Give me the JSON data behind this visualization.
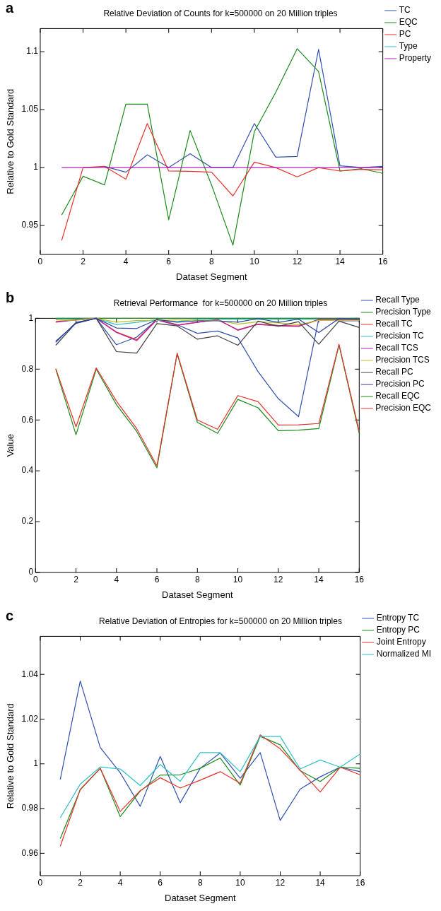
{
  "chart_data": [
    {
      "type": "line",
      "title": "Relative Deviation of Counts for k=500000 on 20 Million triples",
      "annotations": [
        "a"
      ],
      "xlabel": "Dataset Segment",
      "ylabel": "Relative to Gold Standard",
      "x": [
        1,
        2,
        3,
        4,
        5,
        6,
        7,
        8,
        9,
        10,
        11,
        12,
        13,
        14,
        15,
        16
      ],
      "xlim": [
        0,
        16
      ],
      "xticks": [
        0,
        2,
        4,
        6,
        8,
        10,
        12,
        14,
        16
      ],
      "ylim": [
        0.925,
        1.12
      ],
      "yticks": [
        0.95,
        1,
        1.05,
        1.1
      ],
      "grid": false,
      "legend": "right",
      "marker": "none",
      "line_style": "solid",
      "series": [
        {
          "name": "TC",
          "color": "#3050b0",
          "values": [
            null,
            null,
            1.001,
            0.996,
            1.011,
            1.0,
            1.012,
            1.0,
            1.0,
            1.038,
            1.009,
            1.0096,
            1.102,
            1.0015,
            1.0,
            1.001
          ]
        },
        {
          "name": "EQC",
          "color": "#1a8a1a",
          "values": [
            0.959,
            0.9925,
            0.985,
            1.0547,
            1.0547,
            0.955,
            1.032,
            0.985,
            0.933,
            1.031,
            1.065,
            1.1026,
            1.083,
            0.997,
            0.999,
            0.995
          ]
        },
        {
          "name": "PC",
          "color": "#e8302a",
          "values": [
            0.937,
            1.0,
            1.001,
            0.99,
            1.038,
            0.997,
            0.9968,
            0.996,
            0.9755,
            1.0047,
            1.0,
            0.992,
            1.0,
            0.997,
            0.9985,
            0.998
          ]
        },
        {
          "name": "Type",
          "color": "#30c0c8",
          "values": [
            null,
            null,
            null,
            null,
            null,
            null,
            null,
            null,
            null,
            null,
            null,
            null,
            null,
            null,
            null,
            null
          ]
        },
        {
          "name": "Property",
          "color": "#b020b0",
          "values": [
            1,
            1,
            1,
            1,
            1,
            1,
            1,
            1,
            1,
            1,
            1,
            1,
            1,
            1,
            1,
            1
          ]
        }
      ]
    },
    {
      "type": "line",
      "title": "Retrieval Performance  for k=500000 on 20 Million triples",
      "annotations": [
        "b"
      ],
      "xlabel": "Dataset Segment",
      "ylabel": "Value",
      "x": [
        1,
        2,
        3,
        4,
        5,
        6,
        7,
        8,
        9,
        10,
        11,
        12,
        13,
        14,
        15,
        16
      ],
      "xlim": [
        0,
        16
      ],
      "xticks": [
        0,
        2,
        4,
        6,
        8,
        10,
        12,
        14,
        16
      ],
      "ylim": [
        0,
        1
      ],
      "yticks": [
        0,
        0.2,
        0.4,
        0.6,
        0.8,
        1
      ],
      "grid": false,
      "legend": "right",
      "marker": "none",
      "line_style": "solid",
      "series": [
        {
          "name": "Recall Type",
          "color": "#3050b0",
          "values": [
            0.906,
            0.984,
            1.0,
            0.896,
            0.926,
            0.995,
            0.975,
            0.941,
            0.95,
            0.923,
            0.79,
            0.684,
            0.613,
            0.997,
            0.99,
            0.99
          ]
        },
        {
          "name": "Precision Type",
          "color": "#1a8a1a",
          "values": [
            1,
            1,
            1,
            1,
            1,
            1,
            1,
            1,
            1,
            1,
            1,
            1,
            1,
            1,
            1,
            1
          ]
        },
        {
          "name": "Recall TC",
          "color": "#e8302a",
          "values": [
            0.987,
            0.995,
            1.0,
            0.946,
            0.916,
            0.995,
            0.974,
            0.985,
            0.994,
            0.955,
            0.977,
            0.972,
            0.97,
            0.994,
            0.994,
            0.995
          ]
        },
        {
          "name": "Precision TC",
          "color": "#30c0c8",
          "values": [
            0.996,
            0.996,
            1.0,
            0.975,
            0.984,
            0.995,
            0.987,
            0.996,
            0.996,
            0.996,
            0.996,
            0.996,
            0.996,
            0.996,
            0.996,
            0.996
          ]
        },
        {
          "name": "Recall TCS",
          "color": "#b020b0",
          "values": [
            0.985,
            0.994,
            1.0,
            0.944,
            0.912,
            0.994,
            0.972,
            0.984,
            0.996,
            0.953,
            0.976,
            0.97,
            0.968,
            0.996,
            0.996,
            0.994
          ]
        },
        {
          "name": "Precision TCS",
          "color": "#c0c020",
          "values": [
            0.994,
            0.992,
            1.0,
            0.985,
            0.991,
            0.992,
            0.994,
            0.992,
            0.992,
            0.977,
            0.987,
            0.982,
            0.975,
            0.992,
            0.992,
            0.992
          ]
        },
        {
          "name": "Recall PC",
          "color": "#404040",
          "values": [
            0.894,
            0.982,
            1.0,
            0.869,
            0.863,
            0.979,
            0.97,
            0.918,
            0.931,
            0.894,
            0.989,
            0.969,
            0.987,
            0.898,
            0.989,
            0.964
          ]
        },
        {
          "name": "Precision PC",
          "color": "#2840a0",
          "values": [
            0.91,
            0.98,
            1.0,
            0.962,
            0.96,
            0.995,
            0.985,
            0.99,
            0.99,
            0.985,
            0.999,
            0.984,
            0.997,
            0.944,
            0.999,
            0.997
          ]
        },
        {
          "name": "Recall EQC",
          "color": "#1a8a1a",
          "values": [
            0.8,
            0.542,
            0.8,
            0.66,
            0.555,
            0.412,
            0.86,
            0.591,
            0.547,
            0.681,
            0.648,
            0.558,
            0.56,
            0.566,
            0.895,
            0.547
          ]
        },
        {
          "name": "Precision EQC",
          "color": "#e8302a",
          "values": [
            0.802,
            0.573,
            0.805,
            0.674,
            0.566,
            0.42,
            0.863,
            0.6,
            0.563,
            0.696,
            0.672,
            0.58,
            0.581,
            0.586,
            0.898,
            0.555
          ]
        }
      ]
    },
    {
      "type": "line",
      "title": "Relative Deviation of Entropies for k=500000 on 20 Million triples",
      "annotations": [
        "c"
      ],
      "xlabel": "Dataset Segment",
      "ylabel": "Relative to Gold Standard",
      "x": [
        1,
        2,
        3,
        4,
        5,
        6,
        7,
        8,
        9,
        10,
        11,
        12,
        13,
        14,
        15,
        16
      ],
      "xlim": [
        0,
        16
      ],
      "xticks": [
        0,
        2,
        4,
        6,
        8,
        10,
        12,
        14,
        16
      ],
      "ylim": [
        0.95,
        1.057
      ],
      "yticks": [
        0.96,
        0.98,
        1,
        1.02,
        1.04
      ],
      "grid": false,
      "legend": "right",
      "marker": "none",
      "line_style": "solid",
      "series": [
        {
          "name": "Entropy TC",
          "color": "#3050b0",
          "values": [
            0.993,
            1.037,
            1.0073,
            0.996,
            0.981,
            1.0033,
            0.9826,
            0.998,
            1.0049,
            0.9936,
            1.005,
            0.9747,
            0.9887,
            0.9942,
            0.9985,
            0.9965
          ]
        },
        {
          "name": "Entropy PC",
          "color": "#1a8a1a",
          "values": [
            0.9666,
            0.9884,
            0.998,
            0.9764,
            0.9878,
            0.995,
            0.9951,
            0.998,
            1.0026,
            0.9905,
            1.0123,
            1.0085,
            0.9969,
            0.9921,
            0.9985,
            0.998
          ]
        },
        {
          "name": "Joint Entropy",
          "color": "#e8302a",
          "values": [
            0.9631,
            0.9886,
            0.998,
            0.9787,
            0.988,
            0.9938,
            0.9892,
            0.9927,
            0.9965,
            0.9913,
            1.013,
            1.0067,
            0.9971,
            0.9874,
            0.9985,
            0.9951
          ]
        },
        {
          "name": "Normalized MI",
          "color": "#30c0c8",
          "values": [
            0.9759,
            0.9909,
            0.9986,
            0.9977,
            0.9903,
            0.9997,
            0.9922,
            1.005,
            1.005,
            0.9965,
            1.0122,
            1.0122,
            0.9977,
            1.0017,
            0.9985,
            1.0044
          ]
        }
      ]
    }
  ]
}
